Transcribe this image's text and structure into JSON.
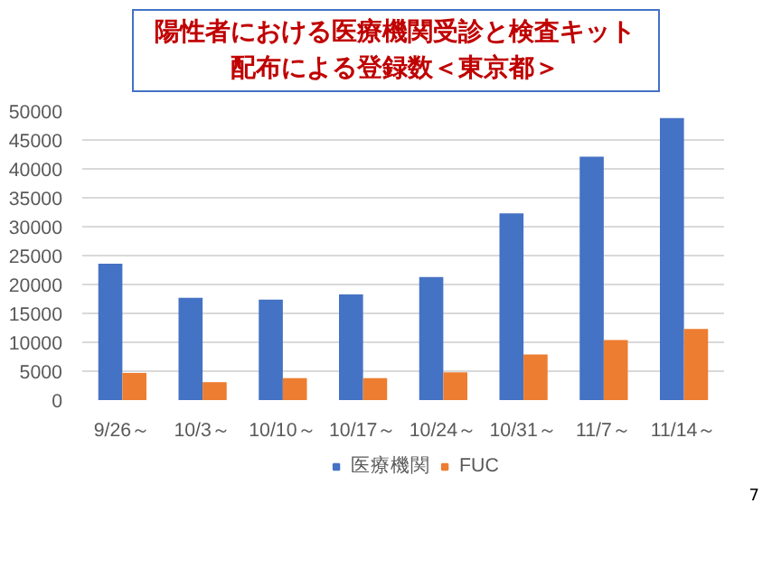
{
  "chart_data": {
    "type": "bar",
    "title": "陽性者における医療機関受診と検査キット",
    "subtitle": "配布による登録数＜東京都＞",
    "categories": [
      "9/26～",
      "10/3～",
      "10/10～",
      "10/17～",
      "10/24～",
      "10/31～",
      "11/7～",
      "11/14～"
    ],
    "series": [
      {
        "name": "医療機関",
        "color": "#4472c4",
        "values": [
          23600,
          17700,
          17400,
          18300,
          21300,
          32300,
          42100,
          48800
        ]
      },
      {
        "name": "FUC",
        "color": "#ed7d31",
        "values": [
          4700,
          3100,
          3800,
          3800,
          4800,
          7900,
          10400,
          12300
        ]
      }
    ],
    "ylim": [
      0,
      50000
    ],
    "yticks": [
      0,
      5000,
      10000,
      15000,
      20000,
      25000,
      30000,
      35000,
      40000,
      45000,
      50000
    ],
    "grid": "y",
    "legend": "bottom",
    "annotations": [
      "7"
    ]
  }
}
